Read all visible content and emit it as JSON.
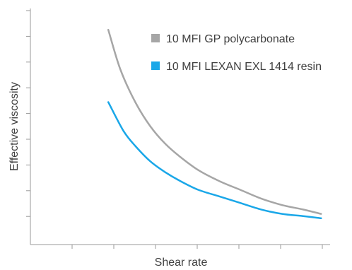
{
  "chart_data": {
    "type": "line",
    "title": "",
    "xlabel": "Shear rate",
    "ylabel": "Effective viscosity",
    "x_ticks": 8,
    "y_ticks": 9,
    "grid": false,
    "legend_position": "top-right",
    "xlim": [
      0,
      1
    ],
    "ylim": [
      0,
      1
    ],
    "series": [
      {
        "name": "10 MFI GP polycarbonate",
        "color": "#a6a6a6",
        "x": [
          0.26,
          0.3,
          0.35,
          0.4,
          0.45,
          0.5,
          0.56,
          0.63,
          0.7,
          0.77,
          0.84,
          0.91,
          0.97
        ],
        "y": [
          0.98,
          0.8,
          0.65,
          0.54,
          0.46,
          0.4,
          0.34,
          0.29,
          0.25,
          0.21,
          0.18,
          0.16,
          0.14
        ]
      },
      {
        "name": "10 MFI LEXAN EXL 1414 resin",
        "color": "#1aa7e8",
        "x": [
          0.26,
          0.31,
          0.35,
          0.4,
          0.45,
          0.5,
          0.56,
          0.63,
          0.7,
          0.77,
          0.84,
          0.91,
          0.97
        ],
        "y": [
          0.65,
          0.52,
          0.45,
          0.38,
          0.33,
          0.29,
          0.25,
          0.22,
          0.19,
          0.16,
          0.14,
          0.13,
          0.12
        ]
      }
    ]
  }
}
